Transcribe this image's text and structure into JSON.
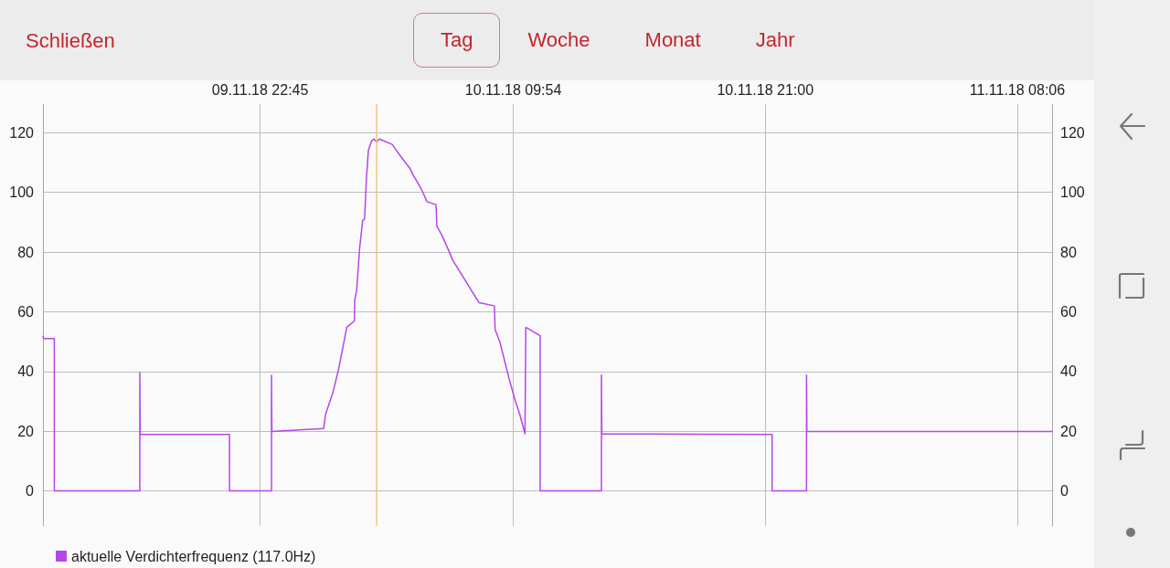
{
  "chart_data": {
    "type": "line",
    "annotations": [
      "Schließen",
      "Tag",
      "Woche",
      "Monat",
      "Jahr"
    ],
    "x": [
      "--11-09T13:11",
      "--11-09T13:13",
      "--11-09T13:41",
      "--11-09T13:41",
      "--11-09T17:27",
      "--11-09T17:27",
      "--11-09T17:28",
      "--11-09T21:24",
      "--11-09T21:24",
      "--11-09T23:15",
      "--11-09T23:15",
      "--11-09T23:16",
      "--11-10T01:33",
      "--11-10T01:38",
      "--11-10T01:56",
      "--11-10T02:12",
      "--11-10T02:34",
      "--11-10T02:54",
      "--11-10T02:55",
      "--11-10T03:00",
      "--11-10T03:08",
      "--11-10T03:16",
      "--11-10T03:21",
      "--11-10T03:26",
      "--11-10T03:31",
      "--11-10T03:39",
      "--11-10T03:45",
      "--11-10T03:53",
      "--11-10T04:00",
      "--11-10T04:34",
      "--11-10T04:45",
      "--11-10T04:57",
      "--11-10T05:09",
      "--11-10T05:21",
      "--11-10T05:29",
      "--11-10T05:41",
      "--11-10T05:54",
      "--11-10T06:06",
      "--11-10T06:30",
      "--11-10T06:32",
      "--11-10T06:46",
      "--11-10T07:02",
      "--11-10T07:14",
      "--11-10T07:34",
      "--11-10T07:54",
      "--11-10T08:06",
      "--11-10T08:24",
      "--11-10T09:04",
      "--11-10T09:06",
      "--11-10T09:19",
      "--11-10T09:31",
      "--11-10T09:43",
      "--11-10T09:59",
      "--11-10T10:11",
      "--11-10T10:25",
      "--11-10T10:27",
      "--11-10T11:05",
      "--11-10T11:05",
      "--11-10T13:47",
      "--11-10T13:47",
      "--11-10T13:48",
      "--11-10T21:18",
      "--11-10T21:18",
      "--11-10T22:49",
      "--11-10T22:49",
      "--11-10T22:50",
      "--11-11T09:38"
    ],
    "series": [
      {
        "name": "aktuelle Verdichterfrequenz (117.0Hz)",
        "color": "#b546ec",
        "values": [
          51.8,
          51,
          51,
          0,
          0,
          39.7,
          18.9,
          18.9,
          0,
          0,
          38.7,
          19.9,
          20.9,
          25.7,
          32.4,
          40.5,
          54.8,
          56.9,
          64,
          67.1,
          81.4,
          90.6,
          91.1,
          104.9,
          114.1,
          117.1,
          117.9,
          117,
          117.9,
          116.1,
          114.1,
          112,
          110,
          108,
          105.9,
          103.4,
          100.3,
          96.9,
          95.9,
          88.7,
          85.5,
          80.9,
          77.3,
          73.2,
          69.1,
          66.6,
          63,
          62,
          54,
          49.7,
          43.6,
          37.5,
          30.3,
          25.7,
          19.1,
          54.8,
          52,
          0,
          0,
          38.8,
          19.1,
          18.9,
          0,
          0,
          38.8,
          19.9,
          19.9
        ]
      }
    ],
    "xlim": [
      "--11-09T13:11",
      "--11-11T09:38"
    ],
    "xticks": [
      {
        "value": "--11-09T22:45",
        "label": "09.11.18 22:45"
      },
      {
        "value": "--11-10T09:54",
        "label": "10.11.18 09:54"
      },
      {
        "value": "--11-10T21:00",
        "label": "10.11.18 21:00"
      },
      {
        "value": "--11-11T08:06",
        "label": "11.11.18 08:06"
      }
    ],
    "ylim": [
      -11.8,
      129.6
    ],
    "yticks": [
      0,
      20,
      40,
      60,
      80,
      100,
      120
    ],
    "y2lim": [
      -11.8,
      129.6
    ],
    "y2ticks": [
      0,
      20,
      40,
      60,
      80,
      100,
      120
    ],
    "ref_lines": [
      {
        "axis": "x",
        "value": "--11-10T03:53",
        "color": "#f5c27e"
      }
    ],
    "grid": true,
    "legend": "bottom left",
    "marker": "none"
  }
}
